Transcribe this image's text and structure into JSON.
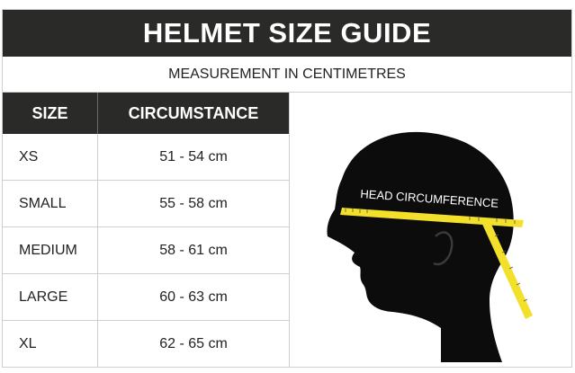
{
  "title": "HELMET SIZE GUIDE",
  "subtitle": "MEASUREMENT IN CENTIMETRES",
  "table": {
    "headers": {
      "size": "SIZE",
      "circumference": "CIRCUMSTANCE"
    },
    "rows": [
      {
        "size": "XS",
        "range": "51 - 54 cm"
      },
      {
        "size": "SMALL",
        "range": "55 - 58 cm"
      },
      {
        "size": "MEDIUM",
        "range": "58 - 61 cm"
      },
      {
        "size": "LARGE",
        "range": "60 - 63 cm"
      },
      {
        "size": "XL",
        "range": "62 - 65 cm"
      }
    ]
  },
  "illustration": {
    "tape_label": "HEAD CIRCUMFERENCE",
    "colors": {
      "silhouette": "#0c0c0c",
      "tape": "#f2e02a",
      "header_bg": "#2a2a28"
    }
  }
}
